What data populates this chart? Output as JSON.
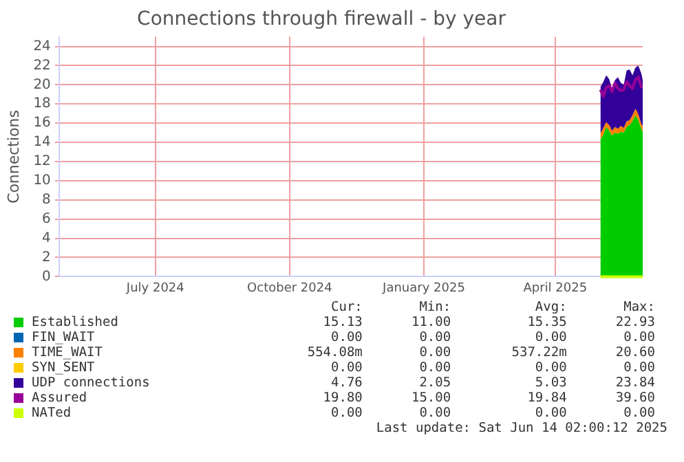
{
  "chart_data": {
    "type": "area",
    "title": "Connections through firewall - by year",
    "ylabel": "Connections",
    "x": [
      "2025-05-16",
      "2025-05-18",
      "2025-05-20",
      "2025-05-22",
      "2025-05-24",
      "2025-05-26",
      "2025-05-28",
      "2025-05-30",
      "2025-06-01",
      "2025-06-03",
      "2025-06-05",
      "2025-06-07",
      "2025-06-09",
      "2025-06-11",
      "2025-06-13",
      "2025-06-14"
    ],
    "series": [
      {
        "name": "Established",
        "color": "#00cc00",
        "values": [
          14.3,
          14.8,
          15.6,
          15.2,
          14.7,
          15.0,
          14.9,
          15.1,
          15.0,
          15.6,
          15.8,
          16.2,
          16.8,
          16.3,
          15.4,
          15.1
        ]
      },
      {
        "name": "FIN_WAIT",
        "color": "#0066b3",
        "values": [
          null,
          null,
          null,
          null,
          null,
          null,
          null,
          null,
          null,
          null,
          null,
          null,
          null,
          null,
          null,
          null
        ]
      },
      {
        "name": "TIME_WAIT",
        "color": "#ff8000",
        "values": [
          0.6,
          0.7,
          0.5,
          0.6,
          0.5,
          0.6,
          0.5,
          0.6,
          0.5,
          0.6,
          0.5,
          0.6,
          0.7,
          0.6,
          0.5,
          0.6
        ]
      },
      {
        "name": "SYN_SENT",
        "color": "#ffcc00",
        "values": [
          null,
          null,
          null,
          null,
          null,
          null,
          null,
          null,
          null,
          null,
          null,
          null,
          null,
          null,
          null,
          null
        ]
      },
      {
        "name": "UDP connections",
        "color": "#330099",
        "values": [
          4.9,
          4.8,
          4.9,
          4.8,
          4.4,
          4.9,
          5.4,
          4.5,
          4.5,
          5.3,
          5.3,
          4.2,
          4.3,
          5.1,
          5.3,
          4.8
        ]
      },
      {
        "name": "Assured",
        "color": "#990099",
        "type": "line",
        "values": [
          19.5,
          18.8,
          19.7,
          19.9,
          19.3,
          20.2,
          19.6,
          19.4,
          19.5,
          20.3,
          19.9,
          19.6,
          20.5,
          20.8,
          19.8,
          19.8
        ]
      },
      {
        "name": "NATed",
        "color": "#ccff00",
        "type": "line",
        "values": [
          0,
          0,
          0,
          0,
          0,
          0,
          0,
          0,
          0,
          0,
          0,
          0,
          0,
          0,
          0,
          0
        ]
      }
    ],
    "stacked": true,
    "xlim": [
      "2024-05-10",
      "2025-06-14"
    ],
    "xticks": [
      {
        "value": "2024-07-15",
        "label": "July 2024"
      },
      {
        "value": "2024-10-15",
        "label": "October 2024"
      },
      {
        "value": "2025-01-15",
        "label": "January 2025"
      },
      {
        "value": "2025-04-15",
        "label": "April 2025"
      }
    ],
    "ylim": [
      0,
      25
    ],
    "yticks": [
      0,
      2,
      4,
      6,
      8,
      10,
      12,
      14,
      16,
      18,
      20,
      22,
      24
    ],
    "grid": true,
    "legend": "bottom",
    "marker": "none",
    "annotations": [
      "Cur:",
      "Min:",
      "Avg:",
      "Max:",
      "15.13",
      "11.00",
      "15.35",
      "22.93",
      "0.00",
      "0.00",
      "0.00",
      "0.00",
      "554.08m",
      "0.00",
      "537.22m",
      "20.60",
      "0.00",
      "0.00",
      "0.00",
      "0.00",
      "4.76",
      "2.05",
      "5.03",
      "23.84",
      "19.80",
      "15.00",
      "19.84",
      "39.60",
      "0.00",
      "0.00",
      "0.00",
      "0.00",
      "Last update: Sat Jun 14 02:00:12 2025"
    ]
  }
}
